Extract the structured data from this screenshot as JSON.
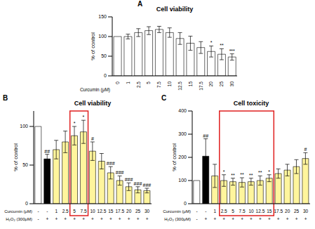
{
  "chart_data": [
    {
      "type": "bar",
      "panel_label": "A",
      "title": "Cell viability",
      "y_label": "% of control",
      "x_label": "Curcumin (μM)",
      "categories": [
        "0",
        "1",
        "2.5",
        "5",
        "7.5",
        "10",
        "12.5",
        "15",
        "17.5",
        "20",
        "25",
        "30"
      ],
      "values": [
        100,
        100,
        110,
        115,
        118,
        110,
        95,
        83,
        72,
        62,
        55,
        48
      ],
      "errors": [
        0,
        6,
        10,
        10,
        8,
        12,
        15,
        18,
        15,
        14,
        14,
        8
      ],
      "significance": [
        null,
        null,
        null,
        null,
        null,
        null,
        null,
        null,
        null,
        "*",
        "**",
        "***"
      ],
      "color": "#ffffff",
      "ylim": [
        0,
        150
      ],
      "yticks": [
        0,
        50,
        100,
        150
      ]
    },
    {
      "type": "bar",
      "panel_label": "B",
      "title": "Cell viability",
      "y_label": "% of control",
      "rows": [
        {
          "label": "Curcumin (μM)",
          "values": [
            "-",
            "-",
            "1",
            "2.5",
            "5",
            "7.5",
            "10",
            "12.5",
            "15",
            "17.5",
            "20",
            "25",
            "30"
          ]
        },
        {
          "label": "H₂O₂ (300μM)",
          "values": [
            "-",
            "+",
            "+",
            "+",
            "+",
            "+",
            "+",
            "+",
            "+",
            "+",
            "+",
            "+",
            "+"
          ]
        }
      ],
      "values": [
        100,
        58,
        70,
        80,
        88,
        93,
        68,
        55,
        40,
        30,
        22,
        18,
        17
      ],
      "errors": [
        0,
        6,
        12,
        14,
        12,
        15,
        12,
        10,
        8,
        6,
        5,
        4,
        3
      ],
      "significance": [
        null,
        "##",
        null,
        null,
        "*",
        "*",
        "#",
        null,
        "###",
        "###",
        "###",
        "###",
        "###"
      ],
      "colors": [
        "#ffffff",
        "#000000",
        "#fff59d",
        "#fff59d",
        "#fff59d",
        "#fff59d",
        "#fff59d",
        "#fff59d",
        "#fff59d",
        "#fff59d",
        "#fff59d",
        "#fff59d",
        "#fff59d"
      ],
      "ylim": [
        0,
        120
      ],
      "yticks": [
        0,
        50,
        100
      ]
    },
    {
      "type": "bar",
      "panel_label": "C",
      "title": "Cell toxicity",
      "y_label": "% of control",
      "rows": [
        {
          "label": "Curcumin (μM)",
          "values": [
            "-",
            "-",
            "1",
            "2.5",
            "5",
            "7.5",
            "10",
            "12.5",
            "15",
            "17.5",
            "20",
            "25",
            "30"
          ]
        },
        {
          "label": "H₂O₂ (300μM)",
          "values": [
            "-",
            "+",
            "+",
            "+",
            "+",
            "+",
            "+",
            "+",
            "+",
            "+",
            "+",
            "+",
            "+"
          ]
        }
      ],
      "values": [
        100,
        205,
        120,
        100,
        95,
        92,
        95,
        100,
        110,
        130,
        145,
        160,
        195
      ],
      "errors": [
        0,
        75,
        50,
        25,
        15,
        20,
        15,
        20,
        15,
        20,
        25,
        30,
        25
      ],
      "significance": [
        null,
        "##",
        null,
        "*",
        "**",
        "**",
        "**",
        "**",
        "*",
        null,
        null,
        null,
        "#"
      ],
      "colors": [
        "#ffffff",
        "#000000",
        "#fff59d",
        "#fff59d",
        "#fff59d",
        "#fff59d",
        "#fff59d",
        "#fff59d",
        "#fff59d",
        "#fff59d",
        "#fff59d",
        "#fff59d",
        "#fff59d"
      ],
      "ylim": [
        0,
        400
      ],
      "yticks": [
        0,
        100,
        200,
        300,
        400
      ]
    }
  ]
}
